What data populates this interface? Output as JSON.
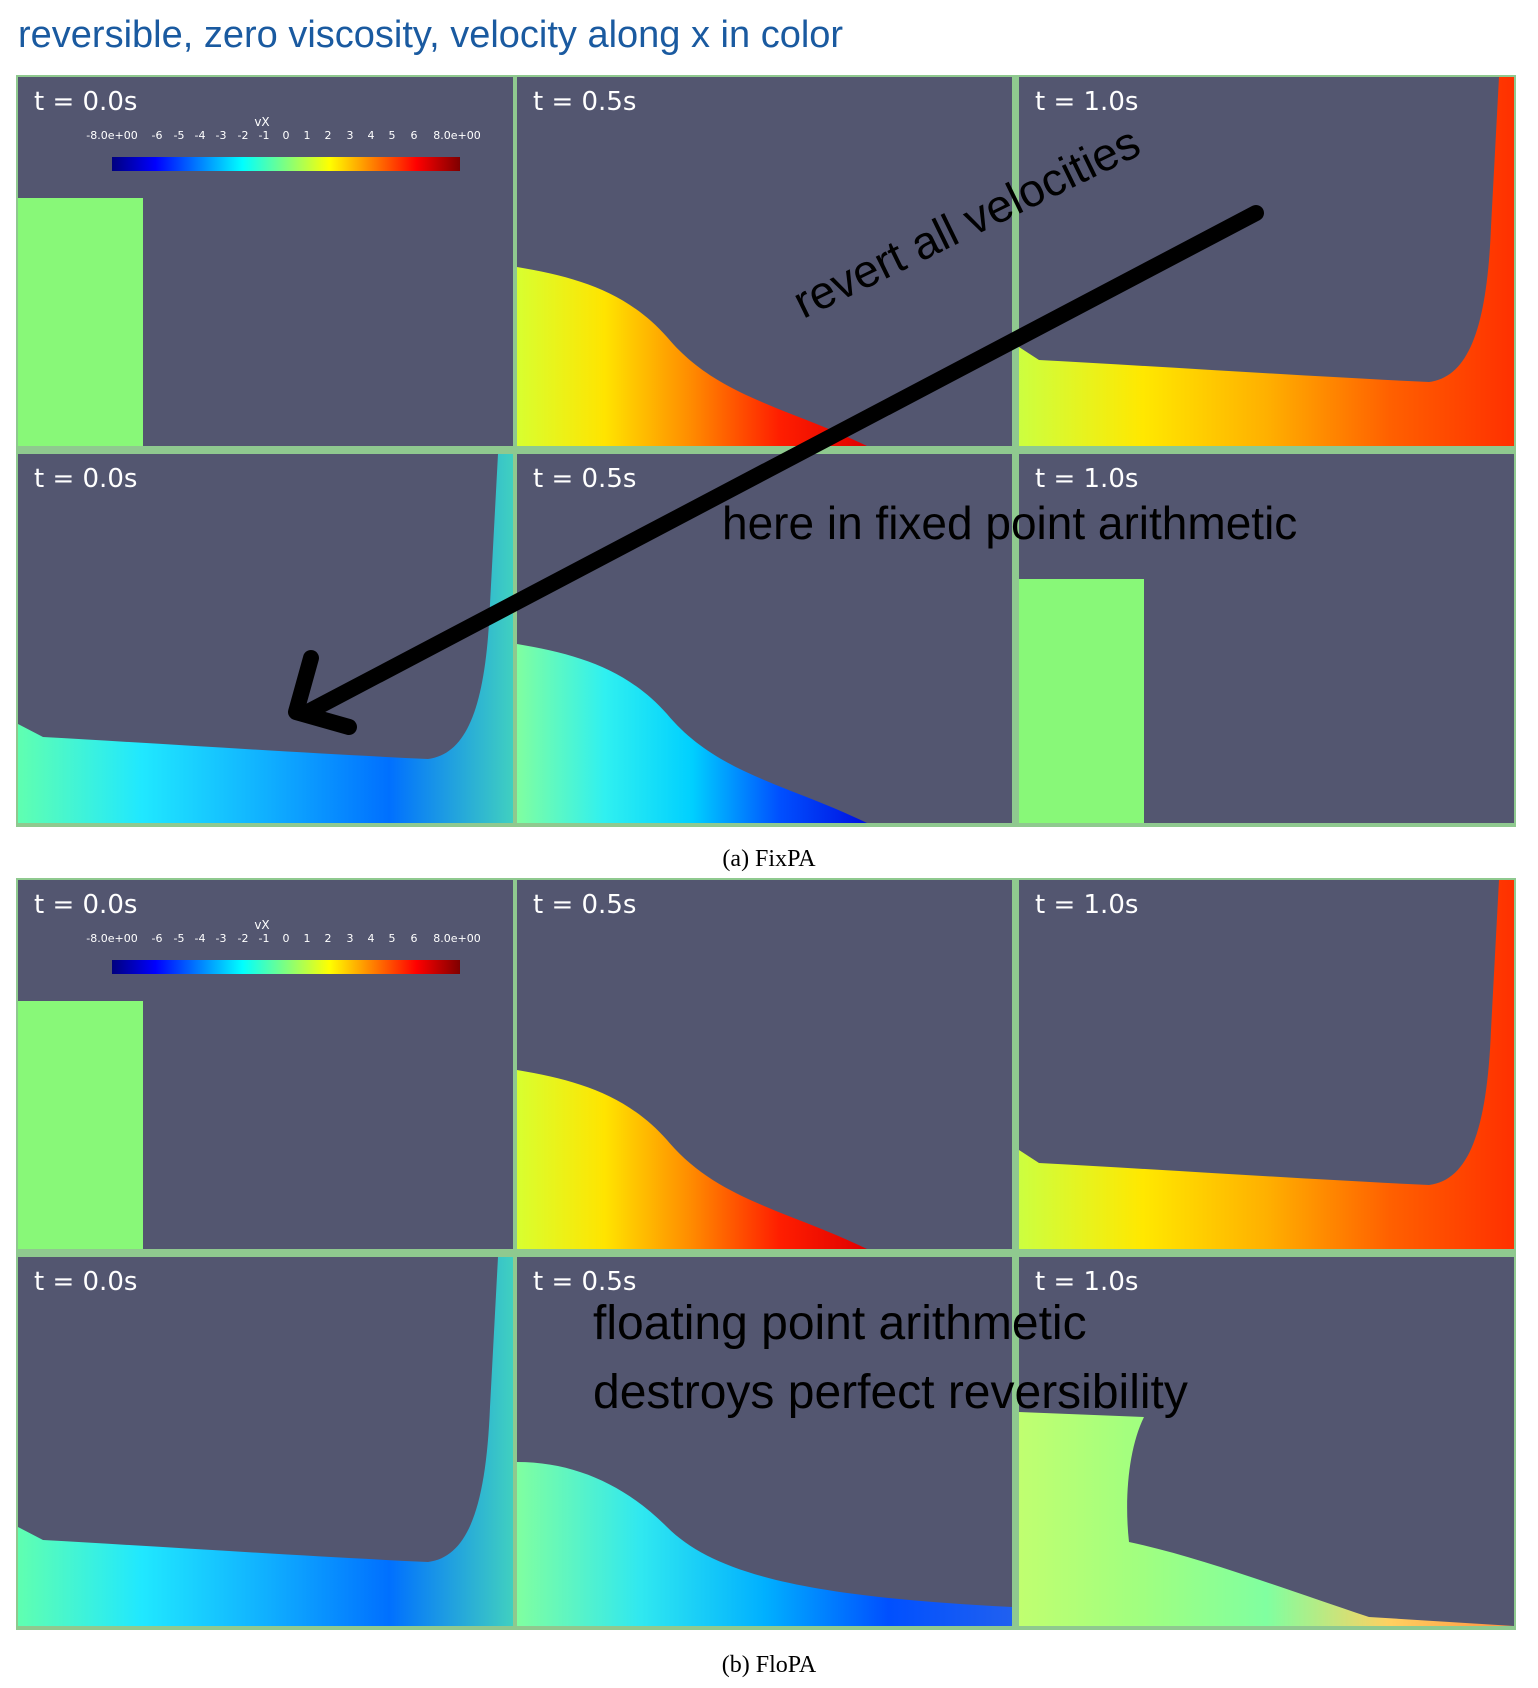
{
  "title": "reversible, zero viscosity, velocity along x in color",
  "colorbar": {
    "label": "vX",
    "ticks": [
      "-8.0e+00",
      "-6",
      "-5",
      "-4",
      "-3",
      "-2",
      "-1",
      "0",
      "1",
      "2",
      "3",
      "4",
      "5",
      "6",
      "8.0e+00"
    ]
  },
  "figures": [
    {
      "caption": "(a) FixPA",
      "panels": [
        {
          "time": "t = 0.0s",
          "state": "initial-column",
          "has_colorbar": true
        },
        {
          "time": "t = 0.5s",
          "state": "forward-half"
        },
        {
          "time": "t = 1.0s",
          "state": "forward-full"
        },
        {
          "time": "t = 0.0s",
          "state": "reverse-full"
        },
        {
          "time": "t = 0.5s",
          "state": "reverse-half"
        },
        {
          "time": "t = 1.0s",
          "state": "final-column"
        }
      ]
    },
    {
      "caption": "(b) FloPA",
      "panels": [
        {
          "time": "t = 0.0s",
          "state": "initial-column",
          "has_colorbar": true
        },
        {
          "time": "t = 0.5s",
          "state": "forward-half"
        },
        {
          "time": "t = 1.0s",
          "state": "forward-full"
        },
        {
          "time": "t = 0.0s",
          "state": "reverse-full"
        },
        {
          "time": "t = 0.5s",
          "state": "reverse-half-noisy"
        },
        {
          "time": "t = 1.0s",
          "state": "final-broken"
        }
      ]
    }
  ],
  "annotations": {
    "revert": "revert all velocities",
    "fixed": "here in fixed point arithmetic",
    "float_line1": "floating point arithmetic",
    "float_line2": "destroys perfect reversibility"
  },
  "colors": {
    "background": "#535670",
    "fluid_rest": "#88f878",
    "title": "#1a5aa0",
    "grid_border": "#8fc98f"
  }
}
